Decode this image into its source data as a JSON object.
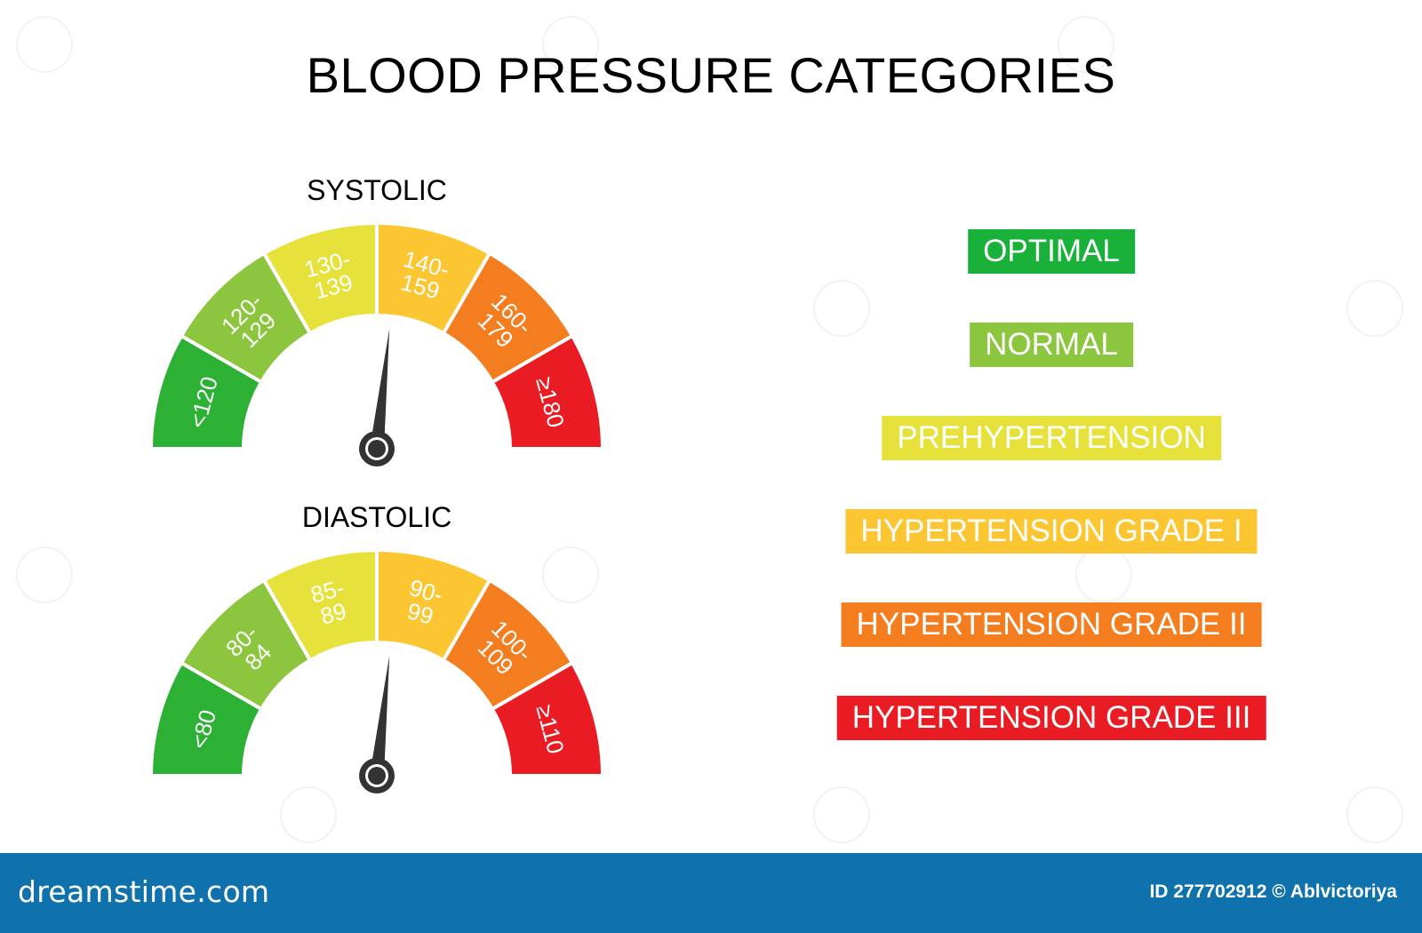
{
  "title": "BLOOD PRESSURE CATEGORIES",
  "gauges": [
    {
      "label": "SYSTOLIC",
      "needle_segment_index": 3,
      "segments": [
        {
          "label": "<120",
          "color": "#2cb135"
        },
        {
          "label": "120-\n129",
          "color": "#8cc63f"
        },
        {
          "label": "130-\n139",
          "color": "#e7e13c"
        },
        {
          "label": "140-\n159",
          "color": "#fbc631"
        },
        {
          "label": "160-\n179",
          "color": "#f47d1f"
        },
        {
          "label": "≥180",
          "color": "#e91c24"
        }
      ]
    },
    {
      "label": "DIASTOLIC",
      "needle_segment_index": 3,
      "segments": [
        {
          "label": "<80",
          "color": "#2cb135"
        },
        {
          "label": "80-\n84",
          "color": "#8cc63f"
        },
        {
          "label": "85-\n89",
          "color": "#e7e13c"
        },
        {
          "label": "90-\n99",
          "color": "#fbc631"
        },
        {
          "label": "100-\n109",
          "color": "#f47d1f"
        },
        {
          "label": "≥110",
          "color": "#e91c24"
        }
      ]
    }
  ],
  "legend": [
    {
      "label": "OPTIMAL",
      "color": "#19b13a"
    },
    {
      "label": "NORMAL",
      "color": "#8cc63f"
    },
    {
      "label": "PREHYPERTENSION",
      "color": "#e7e13c"
    },
    {
      "label": "HYPERTENSION GRADE I",
      "color": "#fbc631"
    },
    {
      "label": "HYPERTENSION GRADE II",
      "color": "#f47d1f"
    },
    {
      "label": "HYPERTENSION GRADE III",
      "color": "#e91c24"
    }
  ],
  "footer": {
    "logo": "dreamstime.com",
    "id_text": "ID 277702912 © Ablvictoriya"
  }
}
